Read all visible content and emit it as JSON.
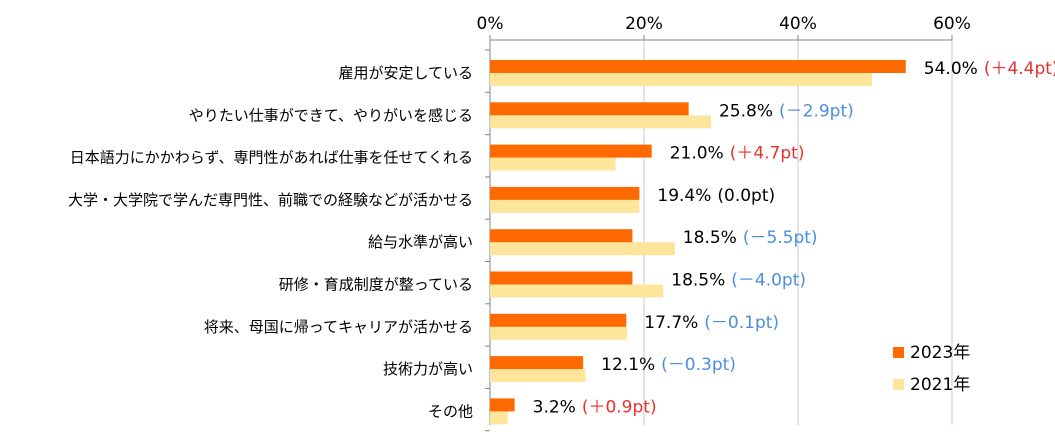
{
  "chart_data": {
    "type": "bar",
    "orientation": "horizontal",
    "xlim": [
      0,
      60
    ],
    "ticks": [
      "0%",
      "20%",
      "40%",
      "60%"
    ],
    "tick_values": [
      0,
      20,
      40,
      60
    ],
    "legend_position": "bottom-right",
    "categories": [
      "雇用が安定している",
      "やりたい仕事ができて、やりがいを感じる",
      "日本語力にかかわらず、専門性があれば仕事を任せてくれる",
      "大学・大学院で学んだ専門性、前職での経験などが活かせる",
      "給与水準が高い",
      "研修・育成制度が整っている",
      "将来、母国に帰ってキャリアが活かせる",
      "技術力が高い",
      "その他"
    ],
    "series": [
      {
        "name": "2023年",
        "color": "#ff6a00",
        "values": [
          54.0,
          25.8,
          21.0,
          19.4,
          18.5,
          18.5,
          17.7,
          12.1,
          3.2
        ]
      },
      {
        "name": "2021年",
        "color": "#fde59c",
        "values": [
          49.6,
          28.7,
          16.3,
          19.4,
          24.0,
          22.5,
          17.8,
          12.4,
          2.3
        ]
      }
    ],
    "data_labels": [
      "54.0%",
      "25.8%",
      "21.0%",
      "19.4%",
      "18.5%",
      "18.5%",
      "17.7%",
      "12.1%",
      "3.2%"
    ],
    "diff_labels": [
      "(＋4.4pt)",
      "(－2.9pt)",
      "(＋4.7pt)",
      "(0.0pt)",
      "(－5.5pt)",
      "(－4.0pt)",
      "(－0.1pt)",
      "(－0.3pt)",
      "(＋0.9pt)"
    ],
    "diff_colors": [
      "#e8312f",
      "#4a8fe0",
      "#e8312f",
      "#000000",
      "#4a8fe0",
      "#4a8fe0",
      "#4a8fe0",
      "#4a8fe0",
      "#e8312f"
    ]
  }
}
